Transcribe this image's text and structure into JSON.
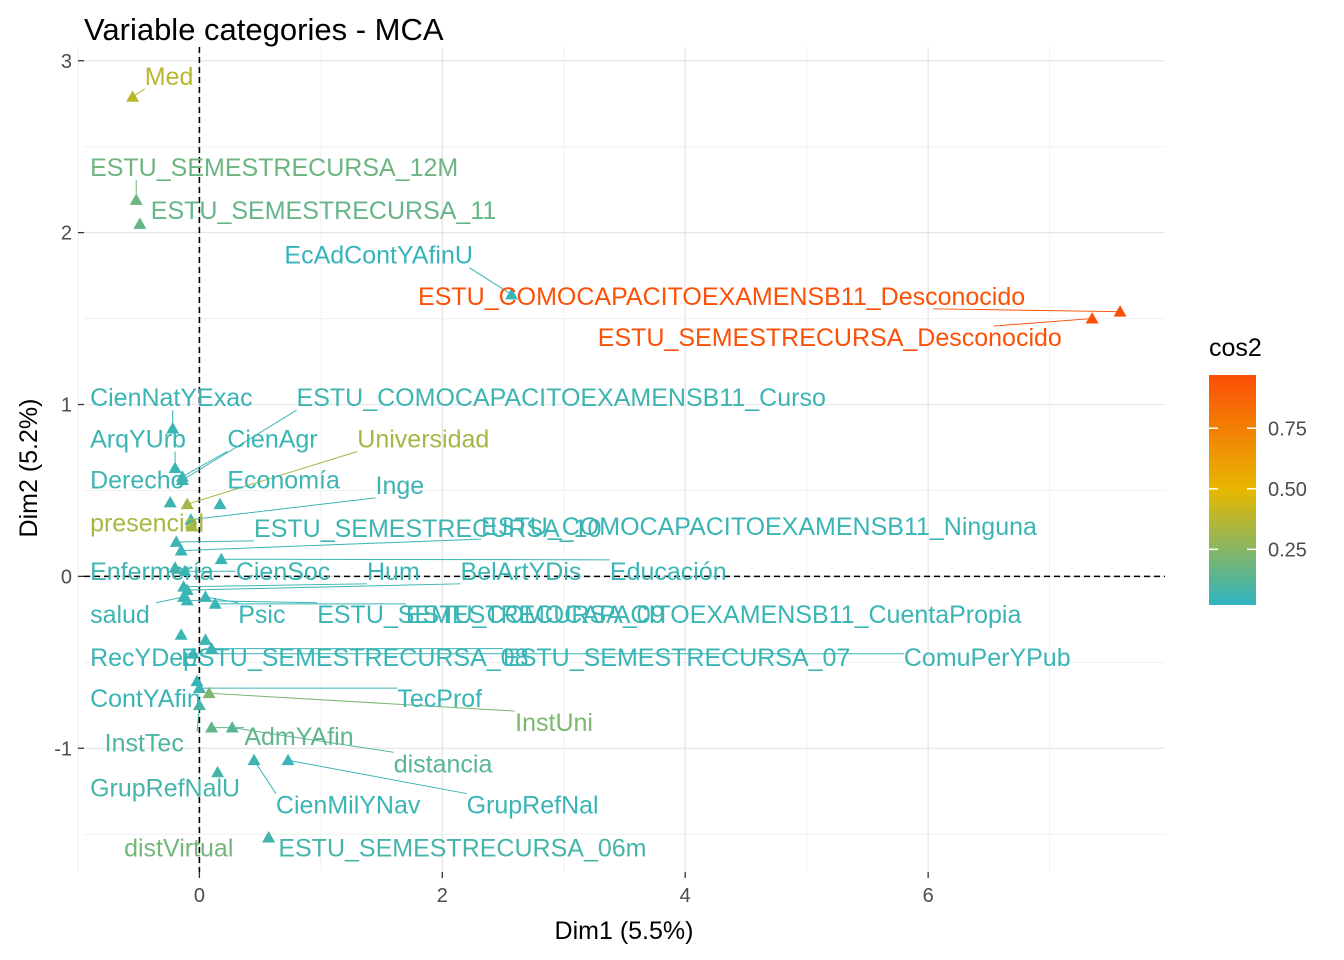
{
  "chart_data": {
    "type": "scatter",
    "title": "Variable categories - MCA",
    "xlabel": "Dim1 (5.5%)",
    "ylabel": "Dim2 (5.2%)",
    "xlim": [
      -0.95,
      7.95
    ],
    "ylim": [
      -1.72,
      3.08
    ],
    "x_ticks": [
      0,
      2,
      4,
      6
    ],
    "y_ticks": [
      -1,
      0,
      1,
      2,
      3
    ],
    "grid": true,
    "reference_lines": {
      "x": 0,
      "y": 0,
      "style": "dashed"
    },
    "legend": {
      "title": "cos2",
      "position": "right",
      "ticks": [
        0.25,
        0.5,
        0.75
      ],
      "range": [
        0.02,
        0.97
      ]
    },
    "colors": {
      "low": "#2EB4C1",
      "mid": "#E7B800",
      "high": "#FC4E07"
    },
    "points": [
      {
        "label": "Med",
        "x": -0.55,
        "y": 2.79,
        "cos2": 0.38,
        "lx": -0.45,
        "ly": 2.86
      },
      {
        "label": "ESTU_SEMESTRECURSA_12M",
        "x": -0.52,
        "y": 2.19,
        "cos2": 0.18,
        "lx": -0.9,
        "ly": 2.33
      },
      {
        "label": "ESTU_SEMESTRECURSA_11",
        "x": -0.49,
        "y": 2.05,
        "cos2": 0.16,
        "lx": -0.4,
        "ly": 2.08
      },
      {
        "label": "EcAdContYAfinU",
        "x": 2.57,
        "y": 1.64,
        "cos2": 0.04,
        "lx": 0.7,
        "ly": 1.82
      },
      {
        "label": "ESTU_COMOCAPACITOEXAMENSB11_Desconocido",
        "x": 7.58,
        "y": 1.54,
        "cos2": 0.96,
        "lx": 1.8,
        "ly": 1.58
      },
      {
        "label": "ESTU_SEMESTRECURSA_Desconocido",
        "x": 7.35,
        "y": 1.5,
        "cos2": 0.96,
        "lx": 3.28,
        "ly": 1.34
      },
      {
        "label": "CienNatYExac",
        "x": -0.22,
        "y": 0.86,
        "cos2": 0.05,
        "lx": -0.9,
        "ly": 0.99
      },
      {
        "label": "ESTU_COMOCAPACITOEXAMENSB11_Curso",
        "x": -0.14,
        "y": 0.56,
        "cos2": 0.06,
        "lx": 0.8,
        "ly": 0.99
      },
      {
        "label": "ArqYUrb",
        "x": -0.2,
        "y": 0.63,
        "cos2": 0.05,
        "lx": -0.9,
        "ly": 0.75
      },
      {
        "label": "CienAgr",
        "x": -0.14,
        "y": 0.58,
        "cos2": 0.05,
        "lx": 0.23,
        "ly": 0.75
      },
      {
        "label": "Universidad",
        "x": -0.1,
        "y": 0.42,
        "cos2": 0.32,
        "lx": 1.3,
        "ly": 0.75
      },
      {
        "label": "Derecho",
        "x": -0.24,
        "y": 0.43,
        "cos2": 0.06,
        "lx": -0.9,
        "ly": 0.51
      },
      {
        "label": "Economía",
        "x": 0.17,
        "y": 0.42,
        "cos2": 0.05,
        "lx": 0.23,
        "ly": 0.51
      },
      {
        "label": "Inge",
        "x": -0.07,
        "y": 0.33,
        "cos2": 0.06,
        "lx": 1.45,
        "ly": 0.48
      },
      {
        "label": "presencial",
        "x": -0.06,
        "y": 0.29,
        "cos2": 0.33,
        "lx": -0.9,
        "ly": 0.26
      },
      {
        "label": "ESTU_SEMESTRECURSA_10",
        "x": -0.19,
        "y": 0.2,
        "cos2": 0.06,
        "lx": 0.45,
        "ly": 0.23
      },
      {
        "label": "ESTU_COMOCAPACITOEXAMENSB11_Ninguna",
        "x": -0.15,
        "y": 0.15,
        "cos2": 0.05,
        "lx": 2.32,
        "ly": 0.24
      },
      {
        "label": "Enfermería",
        "x": -0.2,
        "y": 0.05,
        "cos2": 0.06,
        "lx": -0.9,
        "ly": -0.02
      },
      {
        "label": "CienSoc",
        "x": -0.12,
        "y": 0.03,
        "cos2": 0.05,
        "lx": 0.3,
        "ly": -0.02
      },
      {
        "label": "Hum",
        "x": -0.13,
        "y": -0.06,
        "cos2": 0.05,
        "lx": 1.38,
        "ly": -0.02
      },
      {
        "label": "BelArtYDis",
        "x": -0.1,
        "y": -0.08,
        "cos2": 0.05,
        "lx": 2.15,
        "ly": -0.02
      },
      {
        "label": "Educación",
        "x": 0.18,
        "y": 0.1,
        "cos2": 0.05,
        "lx": 3.38,
        "ly": -0.02
      },
      {
        "label": "salud",
        "x": -0.13,
        "y": -0.12,
        "cos2": 0.05,
        "lx": -0.9,
        "ly": -0.27
      },
      {
        "label": "Psic",
        "x": 0.05,
        "y": -0.12,
        "cos2": 0.05,
        "lx": 0.32,
        "ly": -0.27
      },
      {
        "label": "ESTU_SEMESTRECURSA_09",
        "x": -0.1,
        "y": -0.14,
        "cos2": 0.05,
        "lx": 0.97,
        "ly": -0.27
      },
      {
        "label": "ESTU_COMOCAPACITOEXAMENSB11_CuentaPropia",
        "x": 0.13,
        "y": -0.16,
        "cos2": 0.05,
        "lx": 1.7,
        "ly": -0.27
      },
      {
        "label": "RecYDep",
        "x": -0.15,
        "y": -0.34,
        "cos2": 0.05,
        "lx": -0.9,
        "ly": -0.52
      },
      {
        "label": "ESTU_SEMESTRECURSA_08",
        "x": 0.05,
        "y": -0.37,
        "cos2": 0.05,
        "lx": -0.15,
        "ly": -0.52
      },
      {
        "label": "ESTU_SEMESTRECURSA_07",
        "x": 0.1,
        "y": -0.42,
        "cos2": 0.05,
        "lx": 2.5,
        "ly": -0.52
      },
      {
        "label": "ComuPerYPub",
        "x": -0.05,
        "y": -0.45,
        "cos2": 0.05,
        "lx": 5.8,
        "ly": -0.52
      },
      {
        "label": "ContYAfin",
        "x": -0.02,
        "y": -0.61,
        "cos2": 0.05,
        "lx": -0.9,
        "ly": -0.76
      },
      {
        "label": "TecProf",
        "x": 0.0,
        "y": -0.65,
        "cos2": 0.05,
        "lx": 1.63,
        "ly": -0.76
      },
      {
        "label": "InstUni",
        "x": 0.08,
        "y": -0.68,
        "cos2": 0.22,
        "lx": 2.6,
        "ly": -0.9
      },
      {
        "label": "InstTec",
        "x": 0.0,
        "y": -0.75,
        "cos2": 0.1,
        "lx": -0.78,
        "ly": -1.02
      },
      {
        "label": "AdmYAfin",
        "x": 0.1,
        "y": -0.88,
        "cos2": 0.15,
        "lx": 0.37,
        "ly": -0.98
      },
      {
        "label": "distancia",
        "x": 0.27,
        "y": -0.88,
        "cos2": 0.13,
        "lx": 1.6,
        "ly": -1.14
      },
      {
        "label": "GrupRefNalU",
        "x": 0.15,
        "y": -1.14,
        "cos2": 0.08,
        "lx": -0.9,
        "ly": -1.28
      },
      {
        "label": "CienMilYNav",
        "x": 0.45,
        "y": -1.07,
        "cos2": 0.05,
        "lx": 0.63,
        "ly": -1.38
      },
      {
        "label": "GrupRefNal",
        "x": 0.73,
        "y": -1.07,
        "cos2": 0.05,
        "lx": 2.2,
        "ly": -1.38
      },
      {
        "label": "distVirtual",
        "x": 0.57,
        "y": -1.52,
        "cos2": 0.2,
        "lx": -0.62,
        "ly": -1.63
      },
      {
        "label": "ESTU_SEMESTRECURSA_06m",
        "x": 0.57,
        "y": -1.52,
        "cos2": 0.08,
        "lx": 0.65,
        "ly": -1.63
      }
    ]
  }
}
